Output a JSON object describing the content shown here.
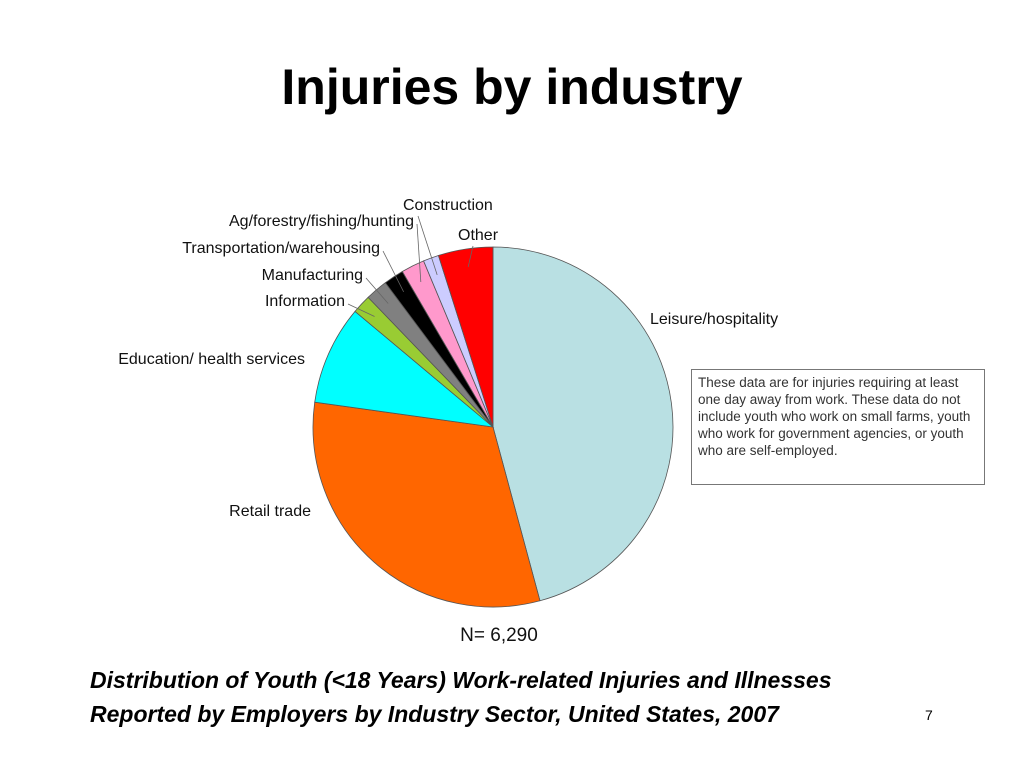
{
  "title": "Injuries by industry",
  "chart_data": {
    "type": "pie",
    "categories": [
      "Leisure/hospitality",
      "Retail trade",
      "Education/ health services",
      "Information",
      "Manufacturing",
      "Transportation/warehousing",
      "Ag/forestry/fishing/hunting",
      "Construction",
      "Other"
    ],
    "values": [
      45.8,
      31.4,
      8.9,
      1.7,
      2,
      1.8,
      2.1,
      1.4,
      4.9
    ],
    "colors": [
      "#b9e0e3",
      "#ff6600",
      "#00ffff",
      "#99cc33",
      "#808080",
      "#000000",
      "#ff99cc",
      "#ccccff",
      "#ff0000"
    ],
    "annotation": "N= 6,290",
    "note": "These data are for injuries requiring at least one day away from work. These data do not include youth who work on small farms, youth who work for government agencies, or youth who are self-employed."
  },
  "caption": [
    "Distribution of Youth (<18 Years) Work-related Injuries and Illnesses",
    "Reported by Employers by Industry Sector, United States, 2007"
  ],
  "page_number": "7"
}
